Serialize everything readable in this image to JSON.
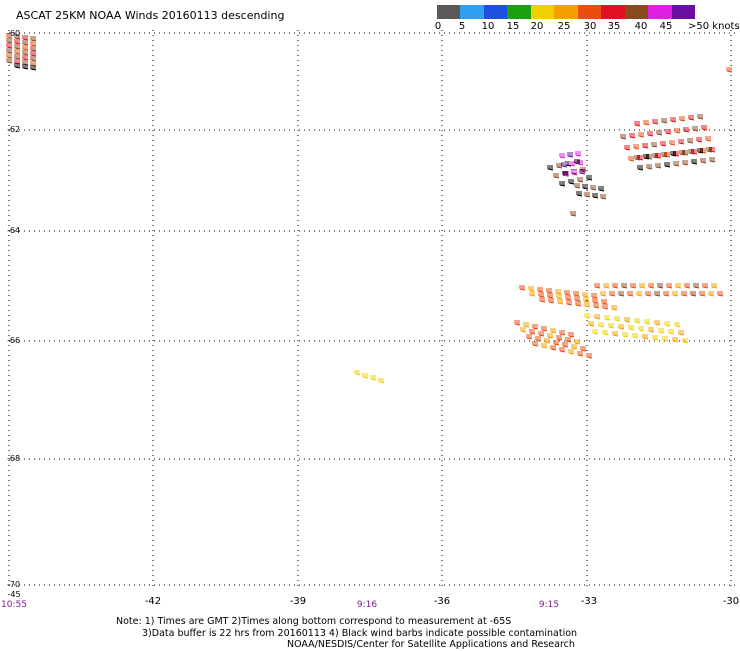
{
  "title": "ASCAT 25KM NOAA Winds 20160113 descending",
  "legend": {
    "colors": [
      "#5a5a5a",
      "#2fa0f0",
      "#1f4fe0",
      "#1aa010",
      "#f0d000",
      "#f5a000",
      "#e84e10",
      "#e01020",
      "#8a4a20",
      "#e020e0",
      "#6a10a0"
    ],
    "labels": [
      "0",
      "5",
      "10",
      "15",
      "20",
      "25",
      "30",
      "35",
      "40",
      "45",
      ">50 knots"
    ]
  },
  "axes": {
    "lat_labels": [
      "-60",
      "-62",
      "-64",
      "-66",
      "-68",
      "-70"
    ],
    "lon_labels": [
      "-45",
      "-42",
      "-39",
      "-36",
      "-33",
      "-30"
    ]
  },
  "times": [
    "10:55",
    "9:16",
    "9:15"
  ],
  "notes": [
    "Note: 1) Times are GMT 2)Times along bottom correspond to measurement at -65S",
    "3)Data buffer is 22 hrs from 20160113 4) Black wind barbs indicate possible contamination",
    "NOAA/NESDIS/Center for Satellite Applications and Research"
  ],
  "wind_clusters": [
    {
      "region": "northwest corner",
      "speed_band": "25-45",
      "colors": [
        "#e84e10",
        "#8a4a20",
        "#e01020",
        "#000000"
      ]
    },
    {
      "region": "near -62 / -31",
      "speed_band": "30-40",
      "colors": [
        "#e01020",
        "#8a4a20"
      ]
    },
    {
      "region": "near -63 / -33.5",
      "speed_band": "40-50",
      "colors": [
        "#8a4a20",
        "#e020e0",
        "#6a10a0",
        "#000000"
      ]
    },
    {
      "region": "near -65.5 / -32",
      "speed_band": "20-35",
      "colors": [
        "#e84e10",
        "#f5a000",
        "#f0d000"
      ]
    },
    {
      "region": "near -66.5 / -38",
      "speed_band": "20-25",
      "colors": [
        "#f0d000"
      ]
    }
  ]
}
